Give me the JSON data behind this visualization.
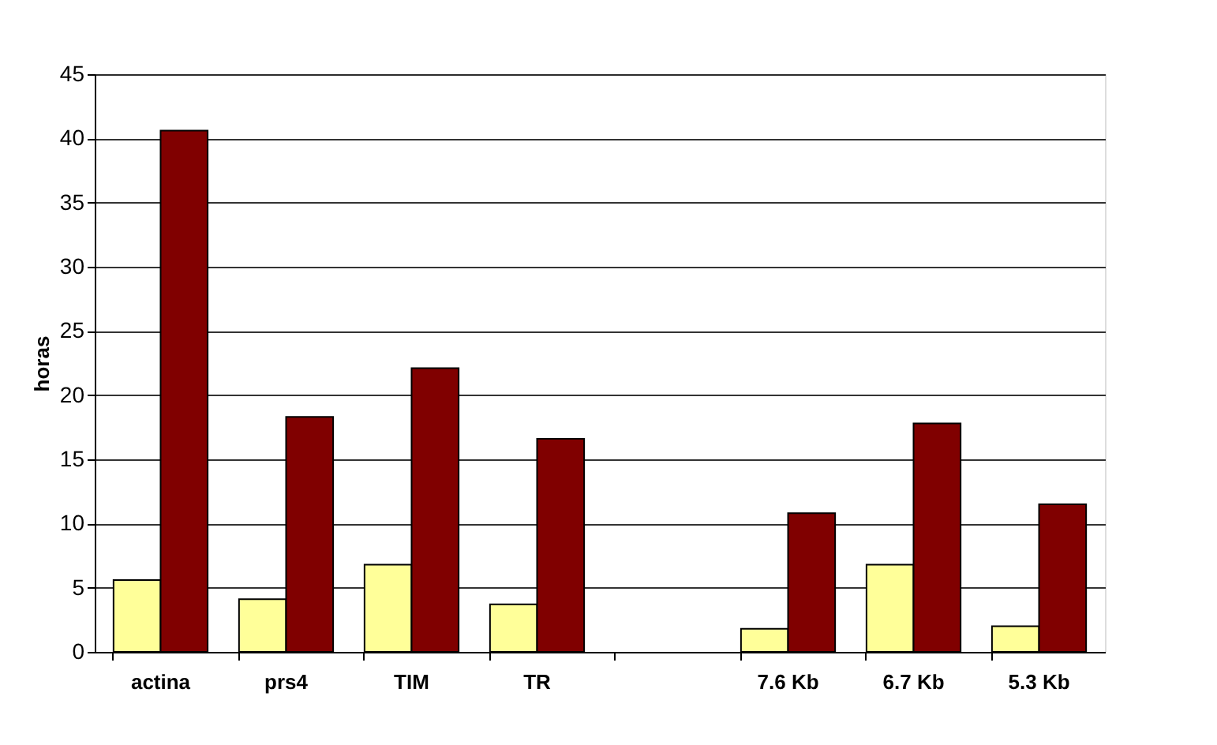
{
  "chart_data": {
    "type": "bar",
    "ylabel": "horas",
    "categories": [
      "actina",
      "prs4",
      "TIM",
      "TR",
      null,
      "7.6 Kb",
      "6.7 Kb",
      "5.3 Kb"
    ],
    "series": [
      {
        "color": "#ffff99",
        "values": [
          5.6,
          4.1,
          6.8,
          3.7,
          null,
          1.8,
          6.8,
          2.0
        ]
      },
      {
        "color": "#800000",
        "values": [
          40.6,
          18.3,
          22.1,
          16.6,
          null,
          10.8,
          17.8,
          11.5
        ]
      }
    ],
    "ylim": [
      0,
      45
    ],
    "yticks": [
      0,
      5,
      10,
      15,
      20,
      25,
      30,
      35,
      40,
      45
    ],
    "grid": "y",
    "legend": false
  }
}
